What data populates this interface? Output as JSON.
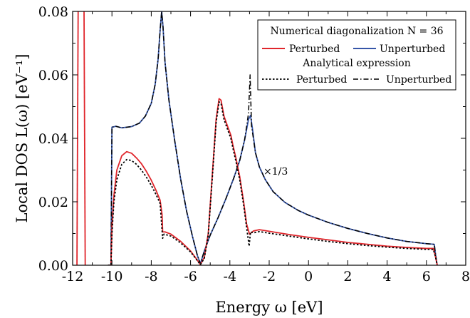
{
  "chart_data": {
    "type": "line",
    "xlabel": "Energy ω [eV]",
    "ylabel": "Local DOS L(ω)  [eV⁻¹]",
    "xlim": [
      -12,
      8
    ],
    "ylim": [
      0,
      0.08
    ],
    "x_ticks": [
      -12,
      -10,
      -8,
      -6,
      -4,
      -2,
      0,
      2,
      4,
      6,
      8
    ],
    "y_ticks": [
      0.0,
      0.02,
      0.04,
      0.06,
      0.08
    ],
    "x_tick_labels": [
      "-12",
      "-10",
      "-8",
      "-6",
      "-4",
      "-2",
      "0",
      "2",
      "4",
      "6",
      "8"
    ],
    "y_tick_labels": [
      "0.00",
      "0.02",
      "0.04",
      "0.06",
      "0.08"
    ],
    "grid": false,
    "legend_placement": "top-right",
    "legend": {
      "heading1": "Numerical diagonalization N = 36",
      "heading2": "Analytical expression",
      "entries": [
        "Perturbed",
        "Unperturbed",
        "Perturbed",
        "Unperturbed"
      ]
    },
    "annotation": "×1/3",
    "colors": {
      "perturbed": "#e0262c",
      "unperturbed": "#3656a8",
      "analytic": "#000000"
    },
    "series": [
      {
        "name": "Perturbed",
        "group": "Numerical diagonalization",
        "color": "#e0262c",
        "dash": "solid",
        "segments": [
          [
            [
              -11.78,
              0.0
            ],
            [
              -11.72,
              0.08
            ]
          ],
          [
            [
              -11.42,
              0.08
            ],
            [
              -11.36,
              0.0
            ]
          ],
          [
            [
              -10.2,
              0.0
            ],
            [
              -10.05,
              0.0
            ],
            [
              -10.0,
              0.012
            ],
            [
              -9.9,
              0.022
            ],
            [
              -9.75,
              0.03
            ],
            [
              -9.5,
              0.0345
            ],
            [
              -9.25,
              0.0358
            ],
            [
              -9.0,
              0.0353
            ],
            [
              -8.75,
              0.0338
            ],
            [
              -8.5,
              0.032
            ],
            [
              -8.25,
              0.0296
            ],
            [
              -8.0,
              0.0268
            ],
            [
              -7.75,
              0.0235
            ],
            [
              -7.55,
              0.0205
            ],
            [
              -7.45,
              0.016
            ],
            [
              -7.42,
              0.0105
            ],
            [
              -7.3,
              0.0105
            ],
            [
              -7.0,
              0.0098
            ],
            [
              -6.5,
              0.0075
            ],
            [
              -6.0,
              0.0045
            ],
            [
              -5.7,
              0.002
            ],
            [
              -5.5,
              0.0002
            ],
            [
              -5.3,
              0.0025
            ],
            [
              -5.1,
              0.01
            ],
            [
              -4.9,
              0.028
            ],
            [
              -4.7,
              0.046
            ],
            [
              -4.55,
              0.0525
            ],
            [
              -4.45,
              0.052
            ],
            [
              -4.3,
              0.047
            ],
            [
              -4.1,
              0.0435
            ],
            [
              -3.95,
              0.041
            ],
            [
              -3.85,
              0.038
            ],
            [
              -3.7,
              0.034
            ],
            [
              -3.5,
              0.028
            ],
            [
              -3.3,
              0.02
            ],
            [
              -3.15,
              0.013
            ],
            [
              -3.0,
              0.0098
            ],
            [
              -2.8,
              0.0108
            ],
            [
              -2.5,
              0.0112
            ],
            [
              -2.0,
              0.0107
            ],
            [
              -1.0,
              0.0097
            ],
            [
              0.0,
              0.0088
            ],
            [
              1.0,
              0.008
            ],
            [
              2.0,
              0.0072
            ],
            [
              3.0,
              0.0066
            ],
            [
              4.0,
              0.006
            ],
            [
              5.0,
              0.0056
            ],
            [
              6.0,
              0.0053
            ],
            [
              6.35,
              0.0053
            ],
            [
              6.45,
              0.003
            ],
            [
              6.55,
              0.0
            ]
          ]
        ]
      },
      {
        "name": "Unperturbed",
        "group": "Numerical diagonalization",
        "color": "#3656a8",
        "dash": "solid",
        "segments": [
          [
            [
              -10.2,
              0.0
            ],
            [
              -10.05,
              0.0
            ],
            [
              -10.0,
              0.0435
            ],
            [
              -9.8,
              0.0438
            ],
            [
              -9.5,
              0.0433
            ],
            [
              -9.0,
              0.0437
            ],
            [
              -8.6,
              0.0448
            ],
            [
              -8.3,
              0.047
            ],
            [
              -8.0,
              0.051
            ],
            [
              -7.8,
              0.057
            ],
            [
              -7.65,
              0.065
            ],
            [
              -7.55,
              0.074
            ],
            [
              -7.47,
              0.08
            ],
            [
              -7.4,
              0.075
            ],
            [
              -7.3,
              0.064
            ],
            [
              -7.1,
              0.052
            ],
            [
              -6.8,
              0.039
            ],
            [
              -6.5,
              0.027
            ],
            [
              -6.2,
              0.017
            ],
            [
              -5.9,
              0.009
            ],
            [
              -5.65,
              0.003
            ],
            [
              -5.5,
              0.0005
            ],
            [
              -5.3,
              0.0045
            ],
            [
              -5.0,
              0.0095
            ],
            [
              -4.6,
              0.015
            ],
            [
              -4.2,
              0.021
            ],
            [
              -3.8,
              0.0275
            ],
            [
              -3.5,
              0.033
            ],
            [
              -3.25,
              0.0395
            ],
            [
              -3.05,
              0.046
            ],
            [
              -2.95,
              0.0472
            ],
            [
              -2.85,
              0.043
            ],
            [
              -2.7,
              0.0355
            ],
            [
              -2.5,
              0.031
            ],
            [
              -2.2,
              0.027
            ],
            [
              -1.8,
              0.0232
            ],
            [
              -1.2,
              0.0198
            ],
            [
              -0.5,
              0.0172
            ],
            [
              0.0,
              0.0158
            ],
            [
              1.0,
              0.0135
            ],
            [
              2.0,
              0.0116
            ],
            [
              3.0,
              0.01
            ],
            [
              4.0,
              0.0086
            ],
            [
              5.0,
              0.0075
            ],
            [
              6.0,
              0.0068
            ],
            [
              6.4,
              0.0066
            ],
            [
              6.45,
              0.004
            ],
            [
              6.55,
              0.0
            ]
          ]
        ]
      },
      {
        "name": "Perturbed",
        "group": "Analytical expression",
        "color": "#000000",
        "dash": "dotted",
        "segments": [
          [
            [
              -10.2,
              0.0
            ],
            [
              -10.05,
              0.0
            ],
            [
              -10.0,
              0.01
            ],
            [
              -9.9,
              0.02
            ],
            [
              -9.75,
              0.027
            ],
            [
              -9.5,
              0.0318
            ],
            [
              -9.25,
              0.0333
            ],
            [
              -9.0,
              0.033
            ],
            [
              -8.75,
              0.0318
            ],
            [
              -8.5,
              0.03
            ],
            [
              -8.25,
              0.0278
            ],
            [
              -8.0,
              0.0252
            ],
            [
              -7.75,
              0.0222
            ],
            [
              -7.55,
              0.0195
            ],
            [
              -7.45,
              0.011
            ],
            [
              -7.42,
              0.0085
            ],
            [
              -7.35,
              0.0098
            ],
            [
              -7.0,
              0.0092
            ],
            [
              -6.5,
              0.007
            ],
            [
              -6.0,
              0.0042
            ],
            [
              -5.7,
              0.0018
            ],
            [
              -5.5,
              0.0002
            ],
            [
              -5.3,
              0.0022
            ],
            [
              -5.1,
              0.0095
            ],
            [
              -4.9,
              0.027
            ],
            [
              -4.7,
              0.045
            ],
            [
              -4.55,
              0.0515
            ],
            [
              -4.45,
              0.051
            ],
            [
              -4.3,
              0.046
            ],
            [
              -4.1,
              0.0425
            ],
            [
              -3.95,
              0.04
            ],
            [
              -3.85,
              0.037
            ],
            [
              -3.7,
              0.033
            ],
            [
              -3.5,
              0.027
            ],
            [
              -3.3,
              0.019
            ],
            [
              -3.15,
              0.012
            ],
            [
              -3.02,
              0.006
            ],
            [
              -2.95,
              0.0105
            ],
            [
              -2.8,
              0.0102
            ],
            [
              -2.5,
              0.0106
            ],
            [
              -2.0,
              0.0101
            ],
            [
              -1.0,
              0.0092
            ],
            [
              0.0,
              0.0083
            ],
            [
              1.0,
              0.0075
            ],
            [
              2.0,
              0.0068
            ],
            [
              3.0,
              0.0062
            ],
            [
              4.0,
              0.0057
            ],
            [
              5.0,
              0.0053
            ],
            [
              6.0,
              0.005
            ],
            [
              6.35,
              0.005
            ],
            [
              6.45,
              0.003
            ],
            [
              6.55,
              0.0
            ]
          ]
        ]
      },
      {
        "name": "Unperturbed",
        "group": "Analytical expression",
        "color": "#000000",
        "dash": "dashdot",
        "segments": [
          [
            [
              -10.2,
              0.0
            ],
            [
              -10.05,
              0.0
            ],
            [
              -10.0,
              0.0435
            ],
            [
              -9.8,
              0.0438
            ],
            [
              -9.5,
              0.0433
            ],
            [
              -9.0,
              0.0437
            ],
            [
              -8.6,
              0.0448
            ],
            [
              -8.3,
              0.047
            ],
            [
              -8.0,
              0.051
            ],
            [
              -7.8,
              0.057
            ],
            [
              -7.65,
              0.065
            ],
            [
              -7.55,
              0.074
            ],
            [
              -7.47,
              0.08
            ],
            [
              -7.4,
              0.075
            ],
            [
              -7.3,
              0.064
            ],
            [
              -7.1,
              0.052
            ],
            [
              -6.8,
              0.039
            ],
            [
              -6.5,
              0.027
            ],
            [
              -6.2,
              0.017
            ],
            [
              -5.9,
              0.009
            ],
            [
              -5.65,
              0.003
            ],
            [
              -5.5,
              0.0005
            ],
            [
              -5.3,
              0.0045
            ],
            [
              -5.0,
              0.0095
            ],
            [
              -4.6,
              0.015
            ],
            [
              -4.2,
              0.021
            ],
            [
              -3.8,
              0.0275
            ],
            [
              -3.5,
              0.033
            ],
            [
              -3.25,
              0.0395
            ],
            [
              -3.05,
              0.048
            ],
            [
              -2.97,
              0.06
            ],
            [
              -2.9,
              0.044
            ],
            [
              -2.7,
              0.0355
            ],
            [
              -2.5,
              0.031
            ],
            [
              -2.2,
              0.027
            ],
            [
              -1.8,
              0.0232
            ],
            [
              -1.2,
              0.0198
            ],
            [
              -0.5,
              0.0172
            ],
            [
              0.0,
              0.0158
            ],
            [
              1.0,
              0.0135
            ],
            [
              2.0,
              0.0116
            ],
            [
              3.0,
              0.01
            ],
            [
              4.0,
              0.0086
            ],
            [
              5.0,
              0.0075
            ],
            [
              6.0,
              0.0068
            ],
            [
              6.4,
              0.0066
            ],
            [
              6.45,
              0.004
            ],
            [
              6.55,
              0.0
            ]
          ]
        ]
      }
    ]
  }
}
